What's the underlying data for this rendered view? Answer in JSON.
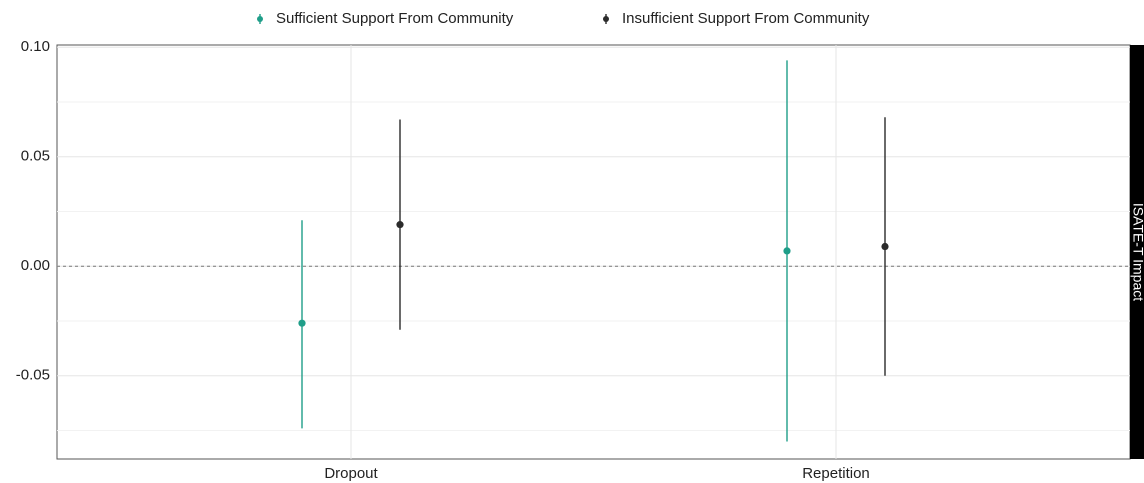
{
  "chart_data": {
    "type": "scatter",
    "subtype": "point-range",
    "categories": [
      "Dropout",
      "Repetition"
    ],
    "series": [
      {
        "name": "Sufficient Support From Community",
        "color": "#1f9e89",
        "points": [
          {
            "category": "Dropout",
            "estimate": -0.026,
            "lower": -0.074,
            "upper": 0.021
          },
          {
            "category": "Repetition",
            "estimate": 0.007,
            "lower": -0.08,
            "upper": 0.094
          }
        ]
      },
      {
        "name": "Insufficient Support From Community",
        "color": "#2b2b2b",
        "points": [
          {
            "category": "Dropout",
            "estimate": 0.019,
            "lower": -0.029,
            "upper": 0.067
          },
          {
            "category": "Repetition",
            "estimate": 0.009,
            "lower": -0.05,
            "upper": 0.068
          }
        ]
      }
    ],
    "yticks": [
      "0.10",
      "0.05",
      "0.00",
      "-0.05"
    ],
    "ylim": [
      -0.088,
      0.101
    ],
    "reference_line": 0,
    "facet_label": "ISATE-T Impact",
    "legend_position": "top",
    "grid": true
  }
}
